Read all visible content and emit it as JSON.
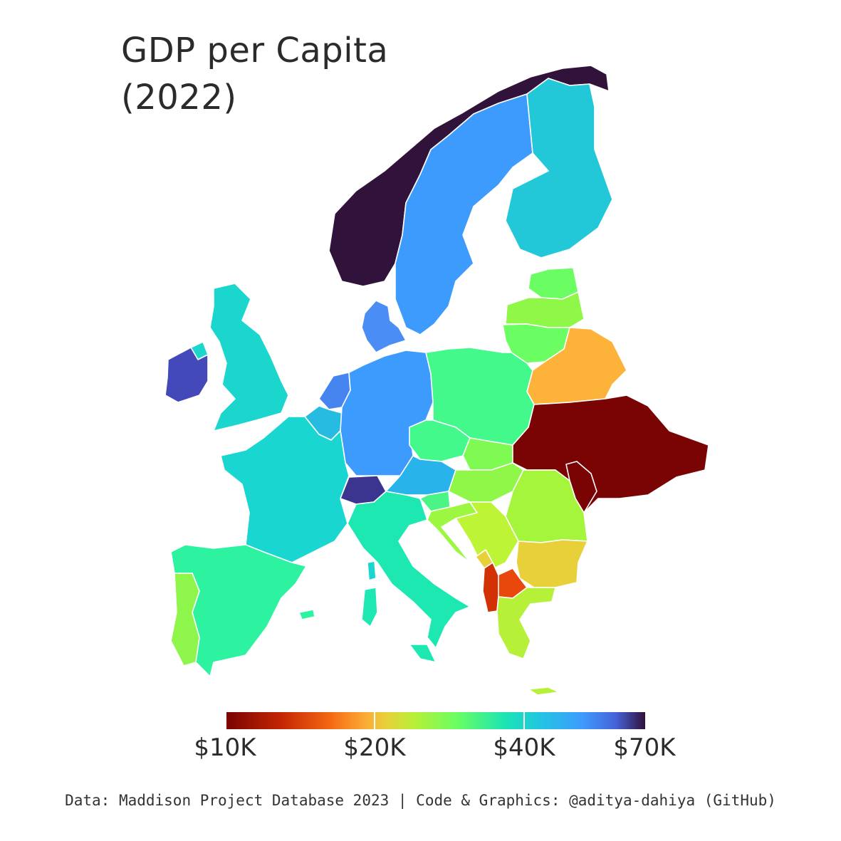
{
  "title": {
    "line1": "GDP per Capita",
    "line2": "(2022)"
  },
  "legend": {
    "ticks": [
      {
        "label": "$10K",
        "value": 10000
      },
      {
        "label": "$20K",
        "value": 20000
      },
      {
        "label": "$40K",
        "value": 40000
      },
      {
        "label": "$70K",
        "value": 70000
      }
    ],
    "min": 8000,
    "max": 72000,
    "scale": "log"
  },
  "caption": "Data: Maddison Project Database 2023 | Code & Graphics: @aditya-dahiya (GitHub)",
  "colors": {
    "norway": "#30123b",
    "switzerland": "#3b3590",
    "ireland": "#4349b8",
    "netherlands": "#4685f0",
    "denmark": "#4a8ef5",
    "sweden": "#3e9bfe",
    "germany": "#3e9bfe",
    "austria": "#28b4ea",
    "belgium": "#26bce1",
    "finland": "#22c8d8",
    "france": "#1ad6d0",
    "uk": "#1ad6cc",
    "italy": "#1ee8b2",
    "spain": "#2df3a0",
    "czechia": "#44f98c",
    "poland": "#44f98c",
    "estonia": "#6afe62",
    "lithuania": "#6afe62",
    "slovenia": "#4af586",
    "latvia": "#8ff748",
    "hungary": "#8ff748",
    "slovakia": "#7ffa52",
    "croatia": "#9cf740",
    "portugal": "#8ef54a",
    "romania": "#a4f53c",
    "greece": "#b6f038",
    "serbia": "#bef436",
    "bulgaria": "#e8d03a",
    "montenegro": "#e8d03a",
    "belarus": "#fdb23a",
    "macedonia": "#e8480b",
    "albania": "#d23105",
    "ukraine": "#7a0403",
    "moldova": "#7a0403"
  }
}
